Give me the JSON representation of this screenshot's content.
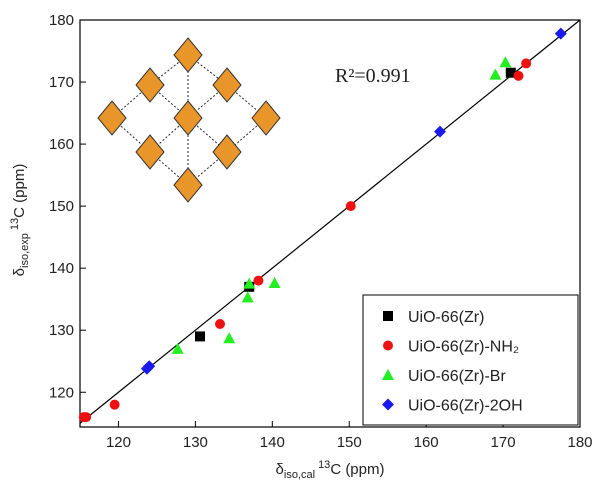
{
  "chart_data": {
    "type": "scatter",
    "xlabel": {
      "symbol": "δ",
      "subscript": "iso,cal",
      "superscript": "13",
      "rest": "C (ppm)"
    },
    "ylabel": {
      "symbol": "δ",
      "subscript": "iso,exp",
      "superscript": "13",
      "rest": "C (ppm)"
    },
    "annotation": "R²=0.991",
    "xlim": [
      115,
      180
    ],
    "ylim": [
      114.4,
      180
    ],
    "xticks": [
      120,
      130,
      140,
      150,
      160,
      170,
      180
    ],
    "yticks": [
      120,
      130,
      140,
      150,
      160,
      170,
      180
    ],
    "legend": "lower right",
    "fit_line": {
      "color": "#000000",
      "x": [
        115,
        180
      ],
      "y": [
        115,
        180
      ]
    },
    "series": [
      {
        "name": "UiO-66(Zr)",
        "color": "#000000",
        "marker": "square",
        "x": [
          171,
          137,
          130.6
        ],
        "y": [
          171.5,
          137,
          129
        ]
      },
      {
        "name": "UiO-66(Zr)-NH₂",
        "color": "#ee1111",
        "marker": "circle",
        "x": [
          115.5,
          115.8,
          119.5,
          133.2,
          138.2,
          150.2,
          172,
          173
        ],
        "y": [
          116,
          116,
          118,
          131,
          138,
          150,
          171,
          173
        ]
      },
      {
        "name": "UiO-66(Zr)-Br",
        "color": "#22ee22",
        "marker": "triangle",
        "x": [
          127.7,
          134.4,
          136.8,
          137,
          140.3,
          169,
          170.3
        ],
        "y": [
          127,
          128.7,
          135.3,
          137.5,
          137.6,
          171.2,
          173.2
        ]
      },
      {
        "name": "UiO-66(Zr)-2OH",
        "color": "#1a1aee",
        "marker": "diamond",
        "x": [
          123.7,
          124,
          161.8,
          177.5
        ],
        "y": [
          123.8,
          124.2,
          162,
          177.8
        ]
      }
    ]
  }
}
